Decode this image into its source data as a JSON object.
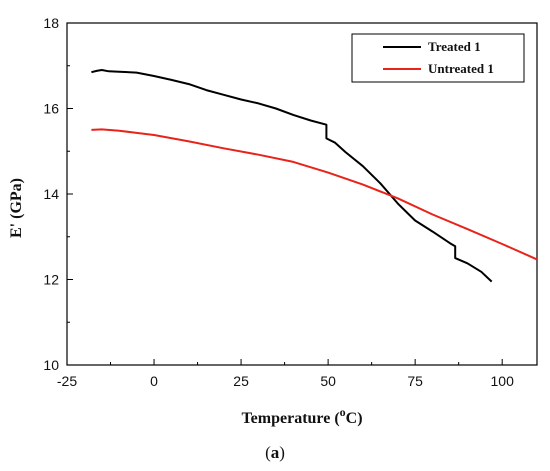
{
  "chart_data": {
    "type": "line",
    "xlabel": "Temperature (",
    "xlabel_sup": "o",
    "xlabel_unit": "C)",
    "ylabel": "E' (GPa)",
    "caption_open": "(",
    "caption_letter": "a",
    "caption_close": ")",
    "xlim": [
      -25,
      110
    ],
    "ylim": [
      10,
      18
    ],
    "xticks": [
      -25,
      0,
      25,
      50,
      75,
      100
    ],
    "yticks": [
      10,
      12,
      14,
      16,
      18
    ],
    "legend_position": "top-right",
    "series": [
      {
        "name": "Treated 1",
        "color": "#000000",
        "points": [
          [
            -18,
            16.85
          ],
          [
            -16.5,
            16.88
          ],
          [
            -15,
            16.9
          ],
          [
            -13,
            16.87
          ],
          [
            -10,
            16.86
          ],
          [
            -5,
            16.84
          ],
          [
            0,
            16.76
          ],
          [
            5,
            16.67
          ],
          [
            10,
            16.57
          ],
          [
            15,
            16.43
          ],
          [
            20,
            16.32
          ],
          [
            25,
            16.21
          ],
          [
            30,
            16.12
          ],
          [
            35,
            16.0
          ],
          [
            40,
            15.85
          ],
          [
            45,
            15.72
          ],
          [
            49.5,
            15.62
          ],
          [
            49.5,
            15.3
          ],
          [
            52,
            15.2
          ],
          [
            55,
            14.98
          ],
          [
            60,
            14.65
          ],
          [
            65,
            14.25
          ],
          [
            70,
            13.78
          ],
          [
            72.5,
            13.58
          ],
          [
            75,
            13.38
          ],
          [
            80,
            13.12
          ],
          [
            85,
            12.85
          ],
          [
            86.5,
            12.78
          ],
          [
            86.5,
            12.5
          ],
          [
            90,
            12.38
          ],
          [
            94,
            12.18
          ],
          [
            97,
            11.95
          ]
        ]
      },
      {
        "name": "Untreated 1",
        "color": "#e8231a",
        "points": [
          [
            -18,
            15.5
          ],
          [
            -15,
            15.51
          ],
          [
            -10,
            15.48
          ],
          [
            -5,
            15.43
          ],
          [
            0,
            15.38
          ],
          [
            10,
            15.23
          ],
          [
            20,
            15.07
          ],
          [
            30,
            14.92
          ],
          [
            40,
            14.75
          ],
          [
            50,
            14.5
          ],
          [
            60,
            14.22
          ],
          [
            70,
            13.9
          ],
          [
            80,
            13.52
          ],
          [
            90,
            13.18
          ],
          [
            100,
            12.83
          ],
          [
            110,
            12.47
          ]
        ]
      }
    ]
  }
}
